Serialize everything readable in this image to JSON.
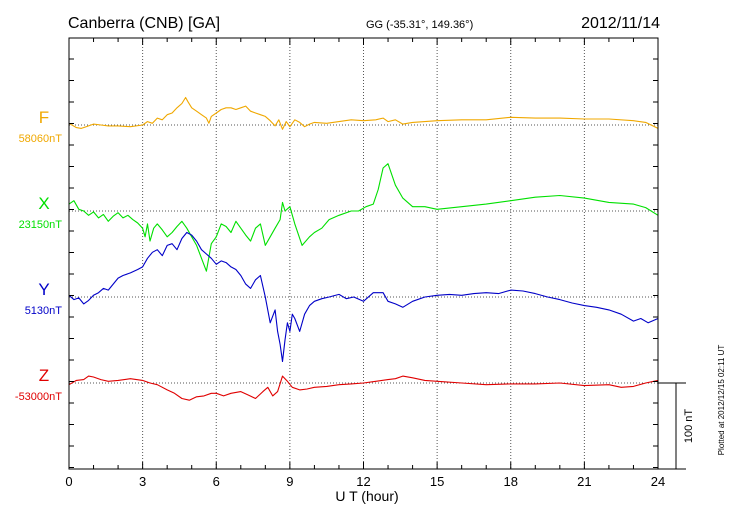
{
  "header": {
    "station": "Canberra (CNB)  [GA]",
    "coords": "GG (-35.31°, 149.36°)",
    "date": "2012/11/14"
  },
  "footer_note": "Plotted at 2012/12/15 02:11  UT",
  "chart_data": {
    "type": "line",
    "xlabel": "U T (hour)",
    "xlim": [
      0,
      24
    ],
    "xticks": [
      "0",
      "3",
      "6",
      "9",
      "12",
      "15",
      "18",
      "21",
      "24"
    ],
    "grid": true,
    "scale_bar": {
      "label": "100 nT",
      "value_nT": 100
    },
    "series": [
      {
        "name": "F",
        "baseline": "58060nT",
        "color": "#f0a800",
        "x": [
          0,
          0.3,
          0.5,
          0.8,
          1.0,
          1.3,
          1.6,
          2.0,
          2.5,
          3.0,
          3.2,
          3.4,
          3.6,
          3.8,
          4.0,
          4.2,
          4.4,
          4.6,
          4.75,
          4.85,
          5.0,
          5.2,
          5.4,
          5.6,
          5.7,
          5.8,
          6.0,
          6.2,
          6.4,
          6.6,
          6.8,
          7.0,
          7.2,
          7.4,
          7.6,
          7.8,
          8.0,
          8.2,
          8.4,
          8.55,
          8.7,
          8.85,
          9.0,
          9.2,
          9.4,
          9.6,
          9.8,
          10.0,
          10.5,
          11.0,
          11.5,
          12.0,
          12.5,
          12.8,
          13.0,
          13.3,
          13.6,
          14.0,
          15.0,
          16.0,
          17.0,
          18.0,
          19.0,
          20.0,
          21.0,
          22.0,
          23.0,
          23.5,
          24.0
        ],
        "values": [
          2,
          -3,
          -4,
          -1,
          1,
          0,
          -1,
          -1,
          -2,
          0,
          4,
          2,
          8,
          6,
          12,
          14,
          20,
          25,
          32,
          27,
          20,
          16,
          12,
          8,
          2,
          10,
          14,
          18,
          20,
          20,
          18,
          20,
          22,
          16,
          14,
          12,
          10,
          5,
          -1,
          6,
          -5,
          4,
          -2,
          6,
          3,
          -2,
          1,
          3,
          2,
          4,
          6,
          5,
          6,
          8,
          4,
          6,
          1,
          3,
          5,
          6,
          6,
          9,
          8,
          8,
          7,
          7,
          5,
          3,
          -4
        ]
      },
      {
        "name": "X",
        "baseline": "23150nT",
        "color": "#00e000",
        "x": [
          0,
          0.2,
          0.4,
          0.6,
          0.8,
          1.0,
          1.2,
          1.4,
          1.6,
          1.8,
          2.0,
          2.2,
          2.4,
          2.6,
          2.8,
          3.0,
          3.1,
          3.2,
          3.3,
          3.45,
          3.6,
          3.8,
          4.0,
          4.2,
          4.4,
          4.6,
          4.8,
          5.0,
          5.2,
          5.4,
          5.6,
          5.8,
          6.0,
          6.2,
          6.4,
          6.6,
          6.8,
          7.0,
          7.2,
          7.4,
          7.6,
          7.8,
          8.0,
          8.2,
          8.4,
          8.6,
          8.7,
          8.8,
          9.0,
          9.2,
          9.5,
          9.8,
          10.0,
          10.3,
          10.6,
          11.0,
          11.5,
          11.8,
          12.1,
          12.4,
          12.6,
          12.8,
          13.0,
          13.3,
          13.6,
          14.0,
          14.5,
          15.0,
          16.0,
          17.0,
          18.0,
          19.0,
          20.0,
          21.0,
          22.0,
          23.0,
          23.5,
          24.0
        ],
        "values": [
          8,
          12,
          2,
          0,
          -5,
          -1,
          -8,
          -4,
          -12,
          -6,
          -2,
          -8,
          -5,
          -10,
          -14,
          -20,
          -30,
          -15,
          -35,
          -20,
          -15,
          -22,
          -30,
          -25,
          -18,
          -12,
          -20,
          -30,
          -40,
          -55,
          -70,
          -38,
          -30,
          -15,
          -18,
          -25,
          -12,
          -20,
          -28,
          -35,
          -20,
          -15,
          -40,
          -30,
          -20,
          -10,
          10,
          0,
          5,
          -15,
          -40,
          -30,
          -25,
          -20,
          -10,
          -5,
          0,
          0,
          5,
          8,
          25,
          50,
          55,
          30,
          15,
          5,
          5,
          2,
          5,
          8,
          12,
          16,
          18,
          15,
          10,
          8,
          4,
          -5
        ]
      },
      {
        "name": "Y",
        "baseline": "5130nT",
        "color": "#0000c8",
        "x": [
          0,
          0.2,
          0.4,
          0.6,
          0.8,
          1.0,
          1.2,
          1.4,
          1.6,
          1.8,
          2.0,
          2.2,
          2.5,
          2.8,
          3.0,
          3.2,
          3.4,
          3.6,
          3.8,
          4.0,
          4.2,
          4.4,
          4.6,
          4.8,
          5.0,
          5.2,
          5.4,
          5.6,
          5.8,
          6.0,
          6.2,
          6.4,
          6.6,
          6.8,
          7.0,
          7.2,
          7.4,
          7.6,
          7.8,
          8.0,
          8.2,
          8.4,
          8.5,
          8.6,
          8.7,
          8.8,
          8.9,
          9.0,
          9.1,
          9.2,
          9.4,
          9.6,
          9.8,
          10.0,
          10.3,
          10.6,
          11.0,
          11.3,
          11.6,
          12.0,
          12.4,
          12.8,
          13.0,
          13.3,
          13.6,
          14.0,
          14.5,
          15.0,
          15.5,
          16.0,
          16.5,
          17.0,
          17.5,
          18.0,
          18.5,
          19.0,
          19.5,
          20.0,
          20.5,
          21.0,
          21.5,
          22.0,
          22.5,
          23.0,
          23.3,
          23.6,
          24.0
        ],
        "values": [
          2,
          -3,
          -1,
          -8,
          -4,
          2,
          5,
          10,
          8,
          15,
          22,
          25,
          28,
          32,
          35,
          45,
          52,
          55,
          48,
          60,
          62,
          55,
          68,
          75,
          72,
          65,
          55,
          50,
          45,
          38,
          42,
          40,
          35,
          32,
          25,
          15,
          10,
          20,
          25,
          0,
          -30,
          -15,
          -40,
          -55,
          -75,
          -50,
          -30,
          -40,
          -20,
          -25,
          -40,
          -20,
          -10,
          -5,
          -2,
          0,
          3,
          -2,
          0,
          -5,
          5,
          5,
          -5,
          -8,
          -12,
          -5,
          0,
          2,
          3,
          2,
          4,
          5,
          4,
          8,
          7,
          4,
          0,
          -3,
          -7,
          -10,
          -12,
          -15,
          -20,
          -28,
          -25,
          -30,
          -25
        ]
      },
      {
        "name": "Z",
        "baseline": "-53000nT",
        "color": "#e00000",
        "x": [
          0,
          0.3,
          0.6,
          0.8,
          1.0,
          1.3,
          1.6,
          2.0,
          2.5,
          3.0,
          3.3,
          3.6,
          4.0,
          4.3,
          4.6,
          4.9,
          5.2,
          5.5,
          5.8,
          6.0,
          6.3,
          6.6,
          7.0,
          7.3,
          7.6,
          7.9,
          8.1,
          8.3,
          8.5,
          8.7,
          8.9,
          9.1,
          9.4,
          9.7,
          10.0,
          10.5,
          11.0,
          11.5,
          12.0,
          12.5,
          13.0,
          13.3,
          13.6,
          14.0,
          14.5,
          15.0,
          16.0,
          17.0,
          18.0,
          19.0,
          20.0,
          21.0,
          22.0,
          22.5,
          23.0,
          23.5,
          24.0
        ],
        "values": [
          -2,
          3,
          4,
          8,
          7,
          4,
          2,
          3,
          5,
          3,
          0,
          -2,
          -8,
          -12,
          -18,
          -20,
          -16,
          -15,
          -12,
          -12,
          -15,
          -12,
          -10,
          -14,
          -18,
          -10,
          -5,
          -15,
          -10,
          8,
          2,
          -5,
          -8,
          -7,
          -5,
          -4,
          -2,
          -1,
          0,
          2,
          4,
          5,
          8,
          6,
          3,
          2,
          0,
          -2,
          -1,
          -1,
          0,
          -3,
          -2,
          -5,
          -4,
          0,
          3
        ]
      }
    ]
  }
}
